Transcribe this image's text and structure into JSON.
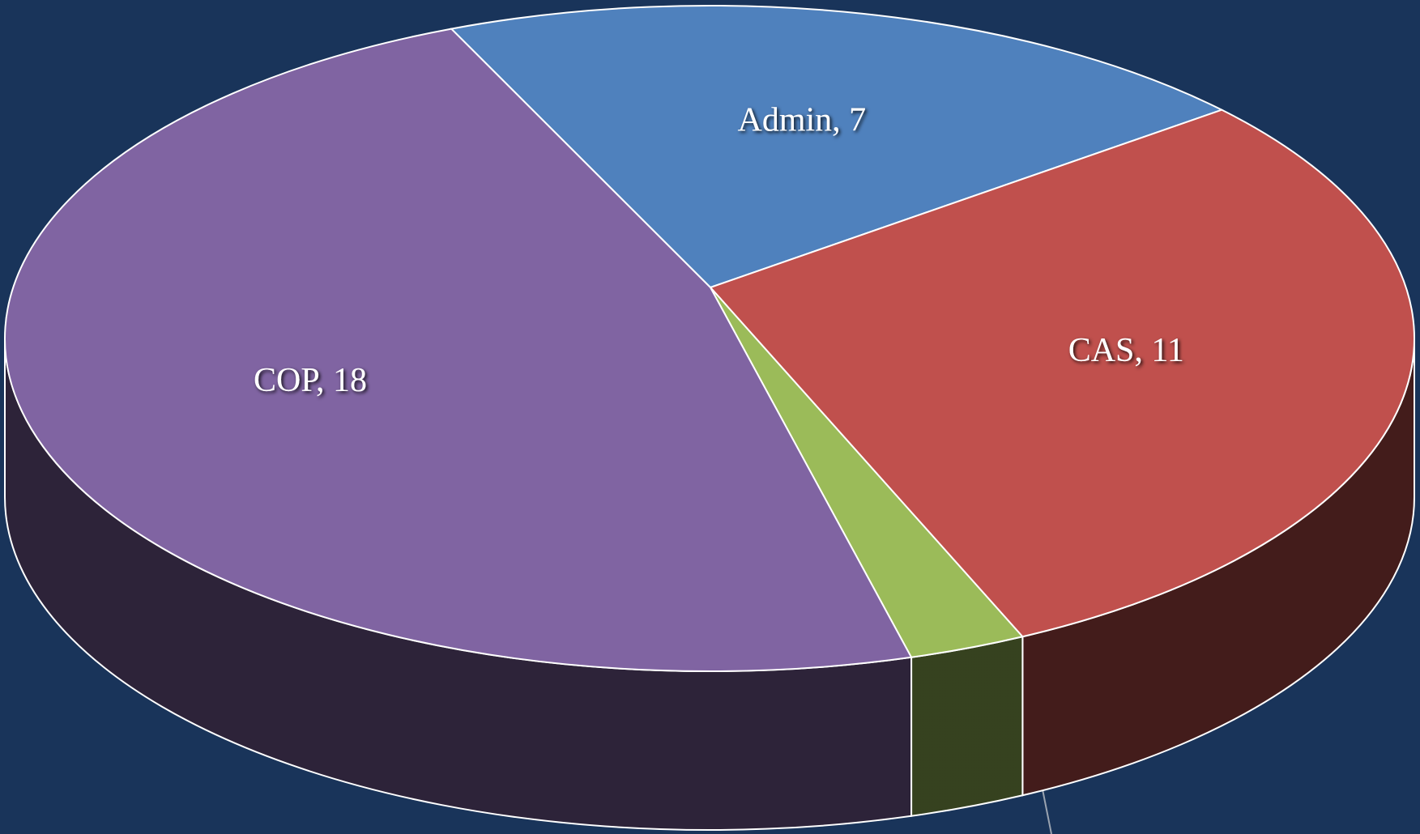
{
  "chart_data": {
    "type": "pie3d",
    "categories": [
      "Admin",
      "CAS",
      null,
      "COP"
    ],
    "values": [
      7,
      11,
      1,
      18
    ],
    "value_labels": [
      "Admin, 7",
      "CAS, 11",
      null,
      "COP, 18"
    ],
    "colors": [
      "#4f81bd",
      "#c0504d",
      "#9bbb59",
      "#8064a2"
    ]
  }
}
